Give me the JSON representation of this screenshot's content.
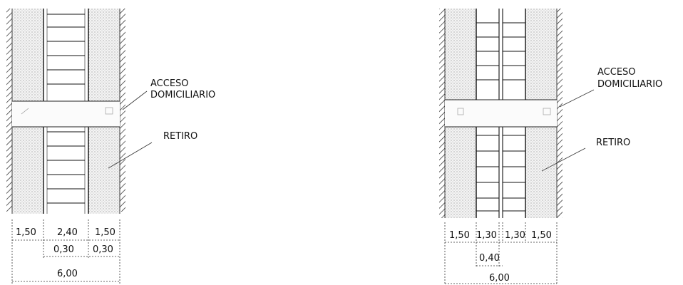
{
  "diagrams": [
    {
      "labels": {
        "access": [
          "ACCESO",
          "DOMICILIARIO"
        ],
        "setback": "RETIRO"
      },
      "dims_row1": [
        "1,50",
        "2,40",
        "1,50"
      ],
      "dims_row2": [
        "0,30",
        "0,30"
      ],
      "dims_total": "6,00"
    },
    {
      "labels": {
        "access": [
          "ACCESO",
          "DOMICILIARIO"
        ],
        "setback": "RETIRO"
      },
      "dims_row1": [
        "1,50",
        "1,30",
        "1,30",
        "1,50"
      ],
      "dims_row2": [
        "0,40"
      ],
      "dims_total": "6,00"
    }
  ],
  "colors": {
    "ink": "#111111",
    "stipple": "#9a9a9a",
    "hatch": "#333333"
  }
}
